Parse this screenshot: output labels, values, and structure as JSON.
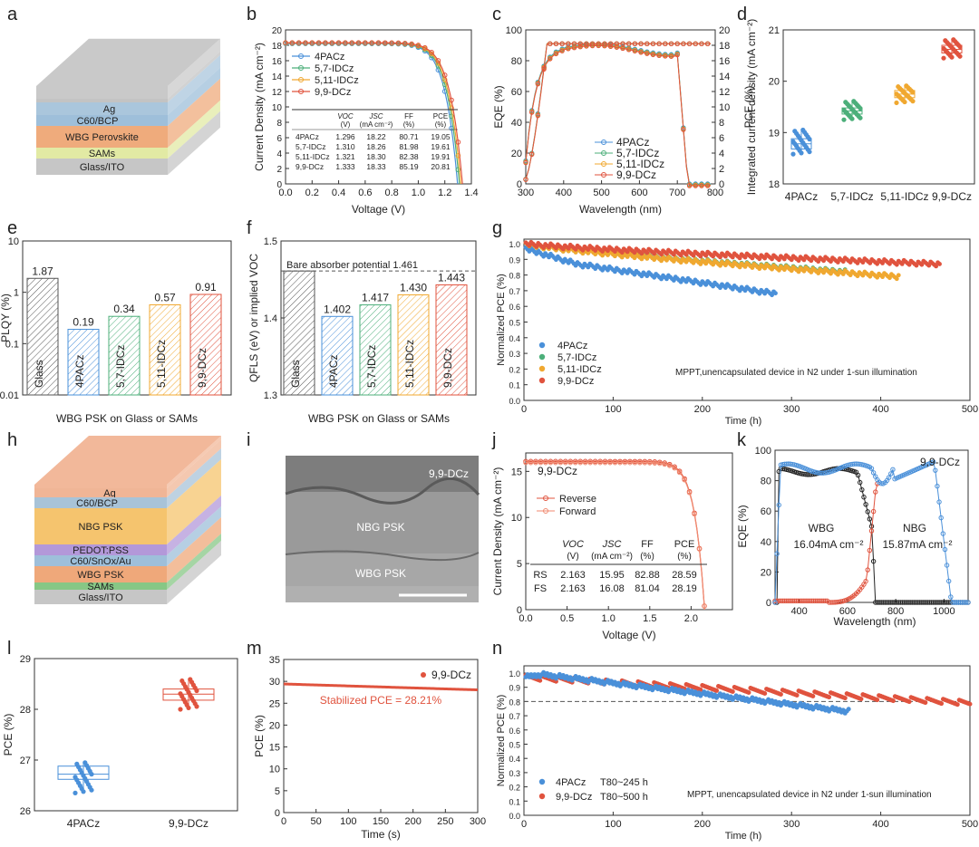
{
  "colors": {
    "blue": "#4a90d9",
    "green": "#4caf7a",
    "orange": "#f0a830",
    "red": "#e0533e",
    "wbg_orange": "#f0a870",
    "ito": "#c8c8c8",
    "sams": "#d8e7a0",
    "cbcp": "#9fbfd8",
    "ag": "#cfcfcf",
    "ngb": "#f5c87a",
    "pedot": "#b496d8"
  },
  "labels": {
    "a": "a",
    "b": "b",
    "c": "c",
    "d": "d",
    "e": "e",
    "f": "f",
    "g": "g",
    "h": "h",
    "i": "i",
    "j": "j",
    "k": "k",
    "l": "l",
    "m": "m",
    "n": "n"
  },
  "panel_a": {
    "layers": [
      "Ag",
      "C60/BCP",
      "WBG Perovskite",
      "SAMs",
      "Glass/ITO"
    ]
  },
  "panel_h": {
    "layers": [
      "Ag",
      "C60/BCP",
      "NBG PSK",
      "PEDOT:PSS",
      "C60/SnOx/Au",
      "WBG PSK",
      "SAMs",
      "Glass/ITO"
    ]
  },
  "panel_i": {
    "top": "9,9-DCz",
    "mid": "NBG PSK",
    "bot": "WBG PSK"
  },
  "chart_data": [
    {
      "panel": "b",
      "type": "line",
      "xlabel": "Voltage (V)",
      "ylabel": "Current Density (mA cm⁻²)",
      "xlim": [
        0.0,
        1.4
      ],
      "ylim": [
        0,
        20
      ],
      "xticks": [
        "0.0",
        "0.2",
        "0.4",
        "0.6",
        "0.8",
        "1.0",
        "1.2",
        "1.4"
      ],
      "yticks": [
        "0",
        "2",
        "4",
        "6",
        "8",
        "10",
        "12",
        "14",
        "16",
        "18",
        "20"
      ],
      "series": [
        {
          "name": "4PACz",
          "voc": 1.296,
          "jsc": 18.22
        },
        {
          "name": "5,7-IDCz",
          "voc": 1.31,
          "jsc": 18.26
        },
        {
          "name": "5,11-IDCz",
          "voc": 1.321,
          "jsc": 18.3
        },
        {
          "name": "9,9-DCz",
          "voc": 1.333,
          "jsc": 18.33
        }
      ],
      "table": {
        "headers": [
          "",
          "VOC (V)",
          "JSC (mA cm⁻²)",
          "FF (%)",
          "PCE (%)"
        ],
        "rows": [
          [
            "4PACz",
            "1.296",
            "18.22",
            "80.71",
            "19.05"
          ],
          [
            "5,7-IDCz",
            "1.310",
            "18.26",
            "81.98",
            "19.61"
          ],
          [
            "5,11-IDCz",
            "1.321",
            "18.30",
            "82.38",
            "19.91"
          ],
          [
            "9,9-DCz",
            "1.333",
            "18.33",
            "85.19",
            "20.81"
          ]
        ]
      }
    },
    {
      "panel": "c",
      "type": "line",
      "xlabel": "Wavelength (nm)",
      "ylabel": "EQE (%)",
      "ylabel2": "Integrated current density (mA cm⁻²)",
      "xlim": [
        300,
        800
      ],
      "ylim": [
        0,
        100
      ],
      "ylim2": [
        0,
        20
      ],
      "xticks": [
        "300",
        "400",
        "500",
        "600",
        "700",
        "800"
      ],
      "yticks": [
        "0",
        "20",
        "40",
        "60",
        "80",
        "100"
      ],
      "yticks2": [
        "0",
        "2",
        "4",
        "6",
        "8",
        "10",
        "12",
        "14",
        "16",
        "18",
        "20"
      ],
      "series": [
        {
          "name": "4PACz"
        },
        {
          "name": "5,7-IDCz"
        },
        {
          "name": "5,11-IDCz"
        },
        {
          "name": "9,9-DCz"
        }
      ]
    },
    {
      "panel": "d",
      "type": "box",
      "ylabel": "PCE (%)",
      "ylim": [
        18,
        21
      ],
      "yticks": [
        "18",
        "19",
        "20",
        "21"
      ],
      "categories": [
        "4PACz",
        "5,7-IDCz",
        "5,11-IDCz",
        "9,9-DCz"
      ],
      "medians": [
        18.78,
        19.42,
        19.75,
        20.62
      ],
      "q1": [
        18.68,
        19.36,
        19.68,
        20.55
      ],
      "q3": [
        18.88,
        19.48,
        19.82,
        20.7
      ],
      "min": [
        18.58,
        19.25,
        19.58,
        20.45
      ],
      "max": [
        19.05,
        19.61,
        19.91,
        20.81
      ]
    },
    {
      "panel": "e",
      "type": "bar",
      "ylabel": "PLQY (%)",
      "xlabel": "WBG PSK on Glass or SAMs",
      "scale": "log",
      "ylim": [
        0.01,
        10
      ],
      "yticks": [
        "0.01",
        "0.1",
        "1",
        "10"
      ],
      "categories": [
        "Glass",
        "4PACz",
        "5,7-IDCz",
        "5,11-IDCz",
        "9,9-DCz"
      ],
      "values": [
        1.87,
        0.19,
        0.34,
        0.57,
        0.91
      ],
      "value_labels": [
        "1.87",
        "0.19",
        "0.34",
        "0.57",
        "0.91"
      ]
    },
    {
      "panel": "f",
      "type": "bar",
      "ylabel": "QFLS (eV) or implied VOC",
      "xlabel": "WBG PSK on Glass or SAMs",
      "ylim": [
        1.3,
        1.5
      ],
      "yticks": [
        "1.3",
        "1.4",
        "1.5"
      ],
      "categories": [
        "Glass",
        "4PACz",
        "5,7-IDCz",
        "5,11-IDCz",
        "9,9-DCz"
      ],
      "values": [
        1.461,
        1.402,
        1.417,
        1.43,
        1.443
      ],
      "value_labels": [
        "",
        "1.402",
        "1.417",
        "1.430",
        "1.443"
      ],
      "annotation": "Bare absorber potential 1.461"
    },
    {
      "panel": "g",
      "type": "scatter",
      "xlabel": "Time (h)",
      "ylabel": "Normalized PCE (%)",
      "xlim": [
        0,
        500
      ],
      "ylim": [
        0,
        1.0
      ],
      "xticks": [
        "0",
        "100",
        "200",
        "300",
        "400",
        "500"
      ],
      "yticks": [
        "0.0",
        "0.1",
        "0.2",
        "0.3",
        "0.4",
        "0.5",
        "0.6",
        "0.7",
        "0.8",
        "0.9",
        "1.0"
      ],
      "series": [
        {
          "name": "4PACz",
          "end_x": 283,
          "end_y": 0.68
        },
        {
          "name": "5,7-IDCz",
          "end_x": 360,
          "end_y": 0.82
        },
        {
          "name": "5,11-IDCz",
          "end_x": 420,
          "end_y": 0.79
        },
        {
          "name": "9,9-DCz",
          "end_x": 467,
          "end_y": 0.87
        }
      ],
      "note": "MPPT,unencapsulated device in N2 under 1-sun illumination"
    },
    {
      "panel": "j",
      "type": "line",
      "xlabel": "Voltage (V)",
      "ylabel": "Current Density (mA cm⁻²)",
      "xlim": [
        0.0,
        2.5
      ],
      "ylim": [
        0,
        17
      ],
      "xticks": [
        "0.0",
        "0.5",
        "1.0",
        "1.5",
        "2.0"
      ],
      "yticks": [
        "0",
        "5",
        "10",
        "15"
      ],
      "title": "9,9-DCz",
      "series": [
        {
          "name": "Reverse"
        },
        {
          "name": "Forward"
        }
      ],
      "table": {
        "headers": [
          "",
          "VOC (V)",
          "JSC (mA cm⁻²)",
          "FF (%)",
          "PCE (%)"
        ],
        "rows": [
          [
            "RS",
            "2.163",
            "15.95",
            "82.88",
            "28.59"
          ],
          [
            "FS",
            "2.163",
            "16.08",
            "81.04",
            "28.19"
          ]
        ]
      }
    },
    {
      "panel": "k",
      "type": "line",
      "xlabel": "Wavelength (nm)",
      "ylabel": "EQE (%)",
      "xlim": [
        300,
        1100
      ],
      "ylim": [
        0,
        100
      ],
      "xticks": [
        "400",
        "600",
        "800",
        "1000"
      ],
      "yticks": [
        "0",
        "20",
        "40",
        "60",
        "80",
        "100"
      ],
      "title": "9,9-DCz",
      "annotations": [
        "WBG",
        "16.04mA cm⁻²",
        "NBG",
        "15.87mA cm⁻²"
      ]
    },
    {
      "panel": "l",
      "type": "box",
      "ylabel": "PCE (%)",
      "ylim": [
        26,
        29
      ],
      "yticks": [
        "26",
        "27",
        "28",
        "29"
      ],
      "categories": [
        "4PACz",
        "9,9-DCz"
      ],
      "medians": [
        26.72,
        28.3
      ],
      "q1": [
        26.62,
        28.18
      ],
      "q3": [
        26.88,
        28.4
      ],
      "min": [
        26.35,
        28.0
      ],
      "max": [
        26.95,
        28.59
      ]
    },
    {
      "panel": "m",
      "type": "line",
      "xlabel": "Time (s)",
      "ylabel": "PCE (%)",
      "xlim": [
        0,
        300
      ],
      "ylim": [
        0,
        35
      ],
      "xticks": [
        "0",
        "50",
        "100",
        "150",
        "200",
        "250",
        "300"
      ],
      "yticks": [
        "0",
        "5",
        "10",
        "15",
        "20",
        "25",
        "30",
        "35"
      ],
      "series": [
        {
          "name": "9,9-DCz"
        }
      ],
      "annotation": "Stabilized PCE = 28.21%"
    },
    {
      "panel": "n",
      "type": "scatter",
      "xlabel": "Time (h)",
      "ylabel": "Normalized PCE (%)",
      "xlim": [
        0,
        500
      ],
      "ylim": [
        0,
        1.0
      ],
      "xticks": [
        "0",
        "100",
        "200",
        "300",
        "400",
        "500"
      ],
      "yticks": [
        "0.0",
        "0.1",
        "0.2",
        "0.3",
        "0.4",
        "0.5",
        "0.6",
        "0.7",
        "0.8",
        "0.9",
        "1.0"
      ],
      "series": [
        {
          "name": "4PACz",
          "t80": "T80~245 h",
          "end_x": 365,
          "end_y": 0.73
        },
        {
          "name": "9,9-DCz",
          "t80": "T80~500 h",
          "end_x": 500,
          "end_y": 0.79
        }
      ],
      "note": "MPPT, unencapsulated device in N2 under 1-sun illumination"
    }
  ]
}
